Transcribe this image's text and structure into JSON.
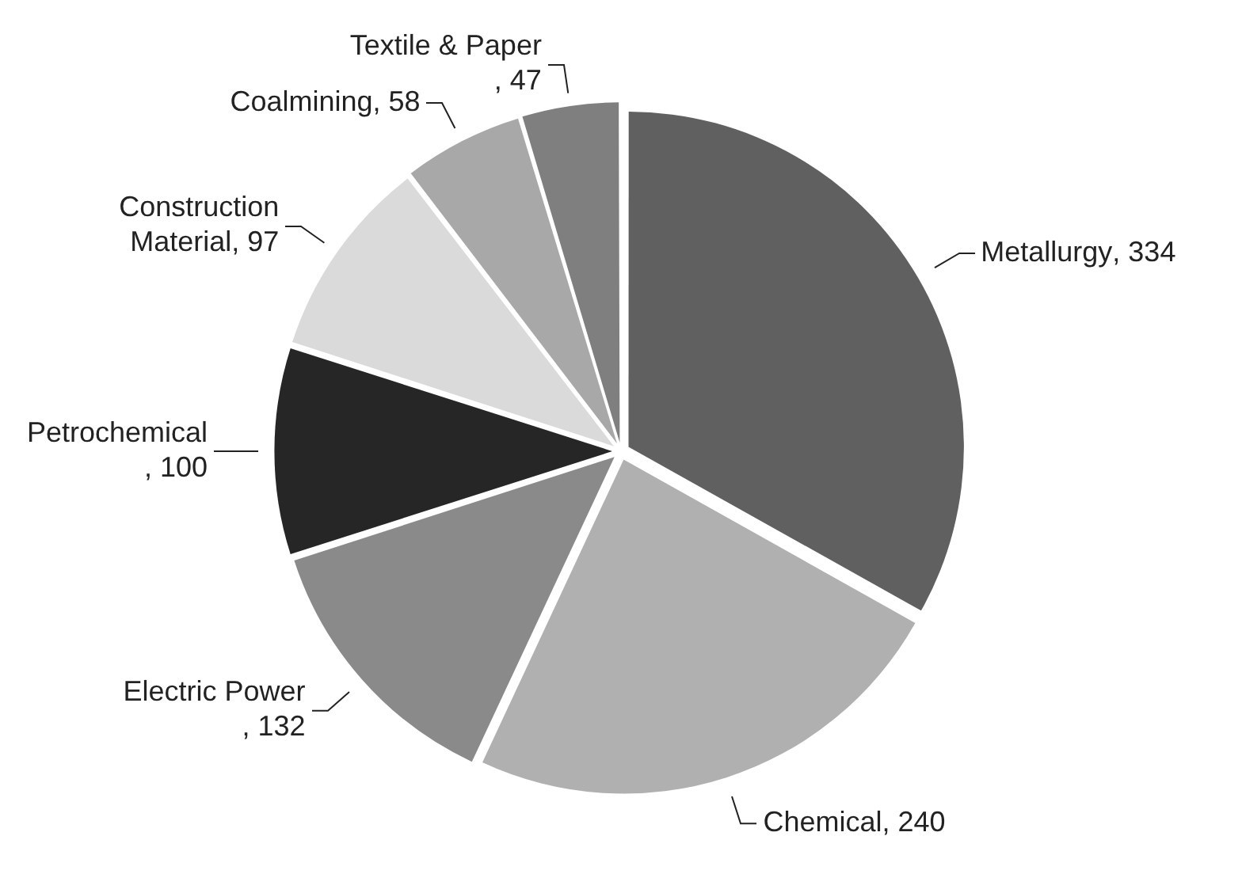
{
  "chart_data": {
    "type": "pie",
    "categories": [
      "Metallurgy",
      "Chemical",
      "Electric Power",
      "Petrochemical",
      "Construction Material",
      "Coalmining",
      "Textile & Paper"
    ],
    "values": [
      334,
      240,
      132,
      100,
      97,
      58,
      47
    ],
    "value_labels": [
      ", 334",
      ", 240",
      ", 132",
      ", 100",
      ", 97",
      ", 58",
      ", 47"
    ],
    "colors": [
      "#606060",
      "#b0b0b0",
      "#8a8a8a",
      "#262626",
      "#dadada",
      "#a8a8a8",
      "#7f7f7f"
    ],
    "legend": false
  }
}
